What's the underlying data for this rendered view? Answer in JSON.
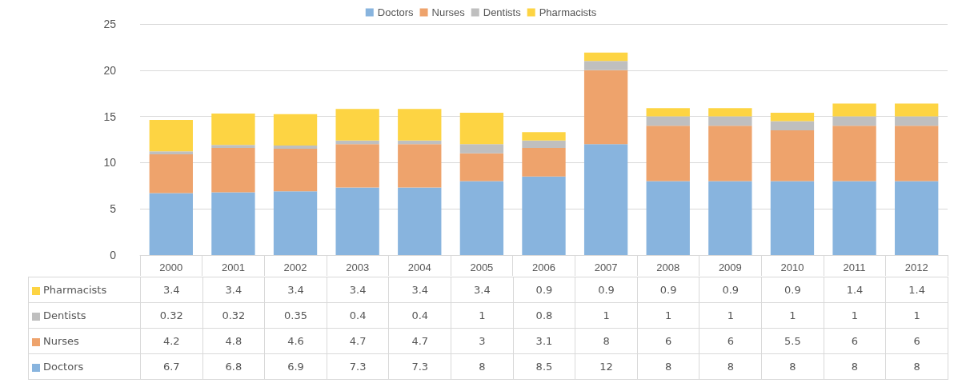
{
  "chart_data": {
    "type": "bar",
    "stacked": true,
    "categories": [
      "2000",
      "2001",
      "2002",
      "2003",
      "2004",
      "2005",
      "2006",
      "2007",
      "2008",
      "2009",
      "2010",
      "2011",
      "2012"
    ],
    "series": [
      {
        "name": "Doctors",
        "color": "#88b4de",
        "values": [
          6.7,
          6.8,
          6.9,
          7.3,
          7.3,
          8,
          8.5,
          12,
          8,
          8,
          8,
          8,
          8
        ]
      },
      {
        "name": "Nurses",
        "color": "#eea36c",
        "values": [
          4.2,
          4.8,
          4.6,
          4.7,
          4.7,
          3,
          3.1,
          8,
          6,
          6,
          5.5,
          6,
          6
        ]
      },
      {
        "name": "Dentists",
        "color": "#bfbfbf",
        "values": [
          0.32,
          0.32,
          0.35,
          0.4,
          0.4,
          1,
          0.8,
          1,
          1,
          1,
          1,
          1,
          1
        ]
      },
      {
        "name": "Pharmacists",
        "color": "#fdd443",
        "values": [
          3.4,
          3.4,
          3.4,
          3.4,
          3.4,
          3.4,
          0.9,
          0.9,
          0.9,
          0.9,
          0.9,
          1.4,
          1.4
        ]
      }
    ],
    "ylim": [
      0,
      25
    ],
    "yticks": [
      0,
      5,
      10,
      15,
      20,
      25
    ],
    "grid": "y",
    "legend": "top",
    "data_labels": true
  }
}
